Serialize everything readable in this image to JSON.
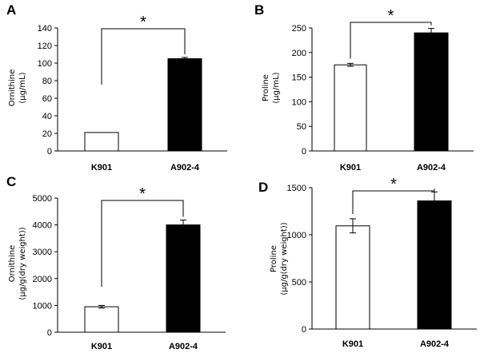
{
  "chart_data": [
    {
      "panel": "A",
      "type": "bar",
      "categories": [
        "K901",
        "A902-4"
      ],
      "values": [
        21,
        105
      ],
      "errors": [
        0,
        1.5
      ],
      "colors": [
        "#ffffff",
        "#000000"
      ],
      "ylabel": [
        "Ornithine",
        "(μg/mL)"
      ],
      "ylim": [
        0,
        140
      ],
      "yticks": [
        0,
        20,
        40,
        60,
        80,
        100,
        120,
        140
      ],
      "significance": "*"
    },
    {
      "panel": "B",
      "type": "bar",
      "categories": [
        "K901",
        "A902-4"
      ],
      "values": [
        175,
        240
      ],
      "errors": [
        3,
        9
      ],
      "colors": [
        "#ffffff",
        "#000000"
      ],
      "ylabel": [
        "Proline",
        "(μg/mL)"
      ],
      "ylim": [
        0,
        250
      ],
      "yticks": [
        0,
        50,
        100,
        150,
        200,
        250
      ],
      "significance": "*"
    },
    {
      "panel": "C",
      "type": "bar",
      "categories": [
        "K901",
        "A902-4"
      ],
      "values": [
        950,
        4000
      ],
      "errors": [
        50,
        180
      ],
      "colors": [
        "#ffffff",
        "#000000"
      ],
      "ylabel": [
        "Ornithine",
        "(μg/g(dry weight))"
      ],
      "ylim": [
        0,
        5000
      ],
      "yticks": [
        0,
        1000,
        2000,
        3000,
        4000,
        5000
      ],
      "significance": "*"
    },
    {
      "panel": "D",
      "type": "bar",
      "categories": [
        "K901",
        "A902-4"
      ],
      "values": [
        1095,
        1360
      ],
      "errors": [
        75,
        95
      ],
      "colors": [
        "#ffffff",
        "#000000"
      ],
      "ylabel": [
        "Proline",
        "(μg/g(dry weight))"
      ],
      "ylim": [
        0,
        1500
      ],
      "yticks": [
        0,
        500,
        1000,
        1500
      ],
      "significance": "*"
    }
  ]
}
